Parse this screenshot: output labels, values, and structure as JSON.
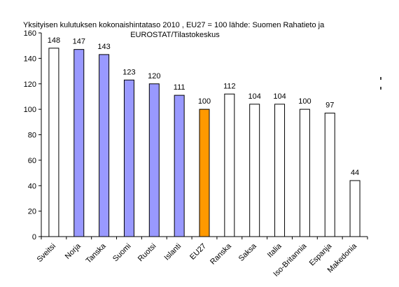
{
  "chart_data": {
    "type": "bar",
    "title_lines": [
      "Yksityisen kulutuksen kokonaishintataso 2010 , EU27 = 100 lähde: Suomen  Rahatieto ja",
      "EUROSTAT/Tilastokeskus"
    ],
    "categories": [
      "Sveitsi",
      "Norja",
      "Tanska",
      "Suomi",
      "Ruotsi",
      "Islanti",
      "EU27",
      "Ranska",
      "Saksa",
      "Italia",
      "Iso-Britannia",
      "Espanja",
      "Makedonia"
    ],
    "values": [
      148,
      147,
      143,
      123,
      120,
      111,
      100,
      112,
      104,
      104,
      100,
      97,
      44
    ],
    "data_labels": [
      "148",
      "147",
      "143",
      "123",
      "120",
      "111",
      "100",
      "112",
      "104",
      "104",
      "100",
      "97",
      "44"
    ],
    "bar_colors": [
      "#ffffff",
      "#9999ff",
      "#9999ff",
      "#9999ff",
      "#9999ff",
      "#9999ff",
      "#ff9900",
      "#ffffff",
      "#ffffff",
      "#ffffff",
      "#ffffff",
      "#ffffff",
      "#ffffff"
    ],
    "ylim": [
      0,
      160
    ],
    "yticks": [
      0,
      20,
      40,
      60,
      80,
      100,
      120,
      140,
      160
    ],
    "ytick_labels": [
      "0",
      "20",
      "40",
      "60",
      "80",
      "100",
      "120",
      "140",
      "160"
    ],
    "grid": false,
    "legend": "none",
    "xlabel": "",
    "ylabel": ""
  }
}
